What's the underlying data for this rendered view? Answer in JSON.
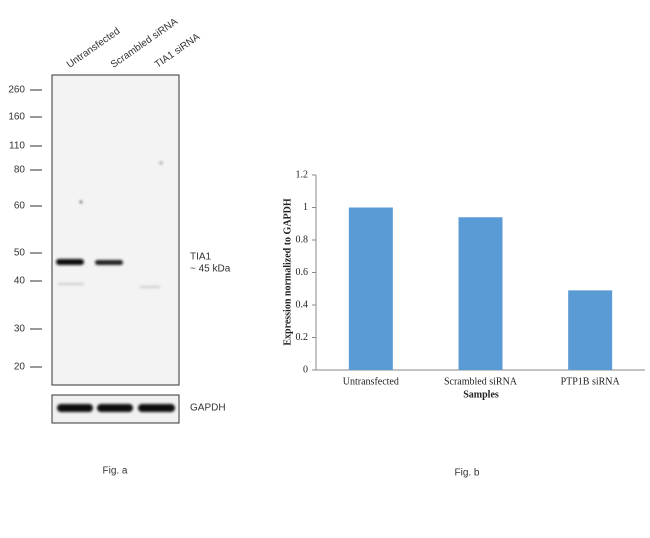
{
  "blot": {
    "lanes": [
      "Untransfected",
      "Scrambled siRNA",
      "TIA1 siRNA"
    ],
    "markers": [
      260,
      160,
      110,
      80,
      60,
      50,
      40,
      30,
      20
    ],
    "band_label": "TIA1",
    "band_size": "~ 45 kDa",
    "loading_control": "GAPDH",
    "caption": "Fig. a"
  },
  "chart_data": {
    "type": "bar",
    "ylabel": "Expression normalized to GAPDH",
    "xlabel": "Samples",
    "categories": [
      "Untransfected",
      "Scrambled siRNA",
      "PTP1B siRNA"
    ],
    "values": [
      1,
      0.94,
      0.49
    ],
    "color": "#5b9bd5",
    "ylim": [
      0,
      1.2
    ],
    "yticks": [
      0,
      0.2,
      0.4,
      0.6,
      0.8,
      1,
      1.2
    ],
    "caption": "Fig. b"
  }
}
